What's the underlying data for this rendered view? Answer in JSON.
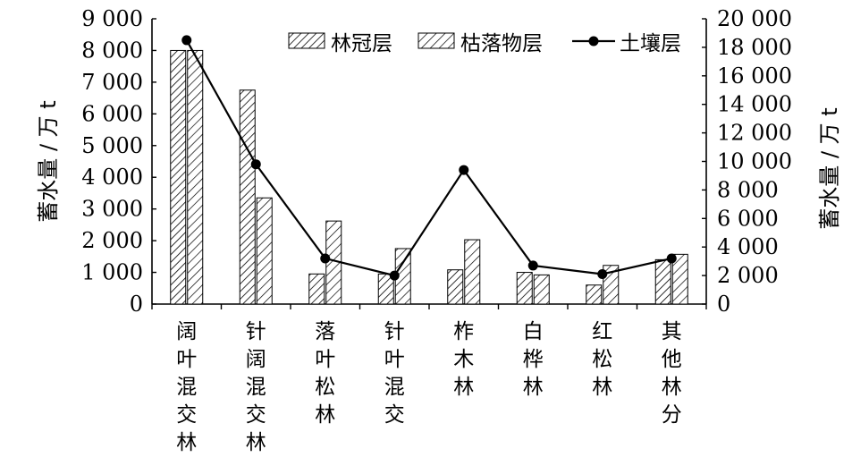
{
  "chart_data": {
    "type": "bar",
    "categories": [
      [
        "阔",
        "叶",
        "混",
        "交",
        "林"
      ],
      [
        "针",
        "阔",
        "混",
        "交",
        "林"
      ],
      [
        "落",
        "叶",
        "松",
        "林"
      ],
      [
        "针",
        "叶",
        "混",
        "交"
      ],
      [
        "柞",
        "木",
        "林"
      ],
      [
        "白",
        "桦",
        "林"
      ],
      [
        "红",
        "松",
        "林"
      ],
      [
        "其",
        "他",
        "林",
        "分"
      ]
    ],
    "series": [
      {
        "name": "林冠层",
        "kind": "bar",
        "axis": "left",
        "pattern": "hatch-fine",
        "values": [
          8000,
          6750,
          950,
          950,
          1080,
          1000,
          600,
          1400
        ]
      },
      {
        "name": "枯落物层",
        "kind": "bar",
        "axis": "left",
        "pattern": "hatch-coarse",
        "values": [
          8000,
          3350,
          2620,
          1750,
          2030,
          920,
          1220,
          1570
        ]
      },
      {
        "name": "土壤层",
        "kind": "line",
        "axis": "right",
        "marker": "circle",
        "values": [
          18500,
          9800,
          3200,
          2000,
          9400,
          2700,
          2100,
          3200
        ]
      }
    ],
    "y_left": {
      "label": "蓄水量 / 万 t",
      "ylim": [
        0,
        9000
      ],
      "ticks": [
        0,
        1000,
        2000,
        3000,
        4000,
        5000,
        6000,
        7000,
        8000,
        9000
      ],
      "tick_labels": [
        "0",
        "1 000",
        "2 000",
        "3 000",
        "4 000",
        "5 000",
        "6 000",
        "7 000",
        "8 000",
        "9 000"
      ]
    },
    "y_right": {
      "label": "蓄水量 / 万 t",
      "ylim": [
        0,
        20000
      ],
      "ticks": [
        0,
        2000,
        4000,
        6000,
        8000,
        10000,
        12000,
        14000,
        16000,
        18000,
        20000
      ],
      "tick_labels": [
        "0",
        "2 000",
        "4 000",
        "6 000",
        "8 000",
        "10 000",
        "12 000",
        "14 000",
        "16 000",
        "18 000",
        "20 000"
      ]
    },
    "legend_position": "top-right",
    "grid": false,
    "colors": {
      "line": "#000000",
      "bar_stroke": "#000000",
      "hatch": "#000000"
    }
  }
}
